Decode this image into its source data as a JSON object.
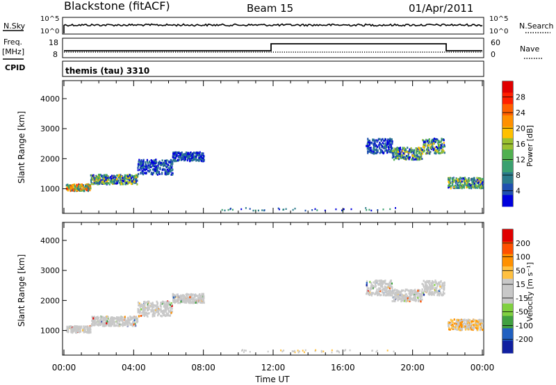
{
  "header": {
    "title": "Blackstone (fitACF)",
    "beam": "Beam 15",
    "date": "01/Apr/2011"
  },
  "top_panels": {
    "nsky_label": "N.Sky",
    "nsky_ticks": [
      "10^5",
      "10^0"
    ],
    "nsearch_label": "N.Search",
    "nsearch_ticks": [
      "10^5",
      "10^0"
    ],
    "freq_label": "Freq.",
    "freq_unit": "[MHz]",
    "freq_ticks": [
      "18",
      "8"
    ],
    "nave_label": "Nave",
    "nave_ticks": [
      "60",
      "0"
    ],
    "cpid_label": "CPID",
    "cpid_text": "themis (tau) 3310"
  },
  "chart_data": [
    {
      "type": "heatmap",
      "name": "power",
      "ylabel": "Slant Range [km]",
      "yticks": [
        1000,
        2000,
        3000,
        4000
      ],
      "ylim": [
        180,
        4600
      ],
      "xlim": [
        0,
        24
      ],
      "colorbar_label": "Power [dB]",
      "colorbar_ticks": [
        "28",
        "24",
        "20",
        "16",
        "12",
        "8",
        "4"
      ],
      "colors": [
        "#0000dd",
        "#2050b0",
        "#2a7a8a",
        "#3aa070",
        "#50b050",
        "#9ac030",
        "#ffc000",
        "#ff9000",
        "#ff6000",
        "#ff2000",
        "#e00000"
      ],
      "scatter_bands": [
        {
          "t0": 0.1,
          "t1": 1.5,
          "r0": 960,
          "r1": 1180,
          "level": "high"
        },
        {
          "t0": 1.5,
          "t1": 4.2,
          "r0": 1180,
          "r1": 1500,
          "level": "mid"
        },
        {
          "t0": 4.2,
          "t1": 6.2,
          "r0": 1500,
          "r1": 2000,
          "level": "low"
        },
        {
          "t0": 6.2,
          "t1": 8.0,
          "r0": 1950,
          "r1": 2250,
          "level": "low"
        },
        {
          "t0": 17.3,
          "t1": 18.8,
          "r0": 2200,
          "r1": 2700,
          "level": "low"
        },
        {
          "t0": 18.8,
          "t1": 20.5,
          "r0": 2000,
          "r1": 2400,
          "level": "mid"
        },
        {
          "t0": 20.5,
          "t1": 21.8,
          "r0": 2200,
          "r1": 2700,
          "level": "mid"
        },
        {
          "t0": 22.0,
          "t1": 24.0,
          "r0": 1050,
          "r1": 1400,
          "level": "mid"
        }
      ]
    },
    {
      "type": "heatmap",
      "name": "velocity",
      "ylabel": "Slant Range [km]",
      "yticks": [
        1000,
        2000,
        3000,
        4000
      ],
      "ylim": [
        180,
        4600
      ],
      "xlim": [
        0,
        24
      ],
      "xticks": [
        "00:00",
        "04:00",
        "08:00",
        "12:00",
        "16:00",
        "20:00",
        "00:00"
      ],
      "xlabel": "Time UT",
      "colorbar_label": "Velocity [m s⁻¹]",
      "colorbar_ticks": [
        "200",
        "100",
        "50",
        "15",
        "-15",
        "-50",
        "-100",
        "-200"
      ],
      "colors": [
        "#1020a0",
        "#2060c0",
        "#40a040",
        "#80d040",
        "#c8c8c8",
        "#c8c8c8",
        "#ffc040",
        "#ff9000",
        "#ff5000",
        "#e00000"
      ],
      "scatter_bands": [
        {
          "t0": 0.1,
          "t1": 1.5,
          "r0": 960,
          "r1": 1180,
          "level": "grey"
        },
        {
          "t0": 1.5,
          "t1": 4.2,
          "r0": 1180,
          "r1": 1500,
          "level": "grey"
        },
        {
          "t0": 4.2,
          "t1": 6.2,
          "r0": 1500,
          "r1": 2000,
          "level": "grey"
        },
        {
          "t0": 6.2,
          "t1": 8.0,
          "r0": 1950,
          "r1": 2250,
          "level": "grey"
        },
        {
          "t0": 17.3,
          "t1": 18.8,
          "r0": 2200,
          "r1": 2700,
          "level": "grey"
        },
        {
          "t0": 18.8,
          "t1": 20.5,
          "r0": 2000,
          "r1": 2400,
          "level": "grey"
        },
        {
          "t0": 20.5,
          "t1": 21.8,
          "r0": 2200,
          "r1": 2700,
          "level": "grey"
        },
        {
          "t0": 22.0,
          "t1": 24.0,
          "r0": 1050,
          "r1": 1400,
          "level": "orange"
        }
      ]
    }
  ]
}
